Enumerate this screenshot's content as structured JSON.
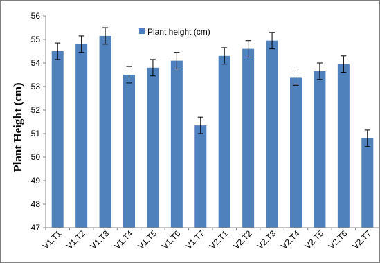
{
  "chart_data": {
    "type": "bar",
    "title": "",
    "xlabel": "",
    "ylabel": "Plant Height (cm)",
    "ylim": [
      47,
      56
    ],
    "yticks": [
      47,
      48,
      49,
      50,
      51,
      52,
      53,
      54,
      55,
      56
    ],
    "grid": false,
    "legend_position": "top-center",
    "categories": [
      "V1.T1",
      "V1.T2",
      "V1.T3",
      "V1.T4",
      "V1.T5",
      "V1.T6",
      "V1.T7",
      "V2.T1",
      "V2.T2",
      "V2.T3",
      "V2.T4",
      "V2.T5",
      "V2.T6",
      "V2.T7"
    ],
    "series": [
      {
        "name": "Plant height (cm)",
        "color": "#4f81bd",
        "values": [
          54.5,
          54.8,
          55.15,
          53.5,
          53.8,
          54.1,
          51.35,
          54.3,
          54.6,
          54.95,
          53.4,
          53.65,
          53.95,
          50.8
        ],
        "error": [
          0.35,
          0.35,
          0.35,
          0.35,
          0.35,
          0.35,
          0.35,
          0.35,
          0.35,
          0.35,
          0.35,
          0.35,
          0.35,
          0.35
        ]
      }
    ]
  }
}
